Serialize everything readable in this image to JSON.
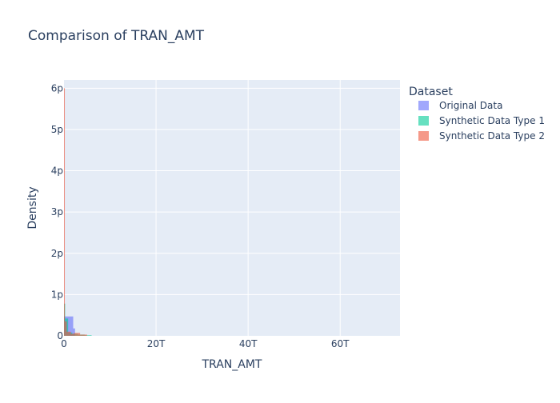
{
  "chart_data": {
    "type": "histogram",
    "title": "Comparison of TRAN_AMT",
    "xlabel": "TRAN_AMT",
    "ylabel": "Density",
    "xlim": [
      0,
      73000000000000.0
    ],
    "ylim": [
      0,
      6.2e-12
    ],
    "x_ticks": [
      {
        "value": 0,
        "label": "0"
      },
      {
        "value": 20000000000000.0,
        "label": "20T"
      },
      {
        "value": 40000000000000.0,
        "label": "40T"
      },
      {
        "value": 60000000000000.0,
        "label": "60T"
      }
    ],
    "y_ticks": [
      {
        "value": 0,
        "label": "0"
      },
      {
        "value": 1e-12,
        "label": "1p"
      },
      {
        "value": 2e-12,
        "label": "2p"
      },
      {
        "value": 3e-12,
        "label": "3p"
      },
      {
        "value": 4e-12,
        "label": "4p"
      },
      {
        "value": 5e-12,
        "label": "5p"
      },
      {
        "value": 6e-12,
        "label": "6p"
      }
    ],
    "legend_title": "Dataset",
    "legend_position": "right",
    "grid": true,
    "series": [
      {
        "name": "Original Data",
        "color": "#636efa",
        "bins": [
          {
            "x0": 0,
            "x1": 2000000000000.0,
            "y": 4.7e-13
          },
          {
            "x0": 2000000000000.0,
            "x1": 2400000000000.0,
            "y": 1.8e-13
          }
        ]
      },
      {
        "name": "Synthetic Data Type 1",
        "color": "#00cc96",
        "bins": [
          {
            "x0": 0,
            "x1": 250000000000.0,
            "y": 7.8e-13
          },
          {
            "x0": 250000000000.0,
            "x1": 900000000000.0,
            "y": 4.2e-13
          },
          {
            "x0": 900000000000.0,
            "x1": 1800000000000.0,
            "y": 8e-14
          },
          {
            "x0": 1800000000000.0,
            "x1": 3000000000000.0,
            "y": 5e-14
          },
          {
            "x0": 3000000000000.0,
            "x1": 4500000000000.0,
            "y": 3e-14
          },
          {
            "x0": 4500000000000.0,
            "x1": 6000000000000.0,
            "y": 1.5e-14
          }
        ]
      },
      {
        "name": "Synthetic Data Type 2",
        "color": "#ef553b",
        "bins": [
          {
            "x0": 0,
            "x1": 180000000000.0,
            "y": 6e-12
          },
          {
            "x0": 180000000000.0,
            "x1": 600000000000.0,
            "y": 3.5e-13
          },
          {
            "x0": 600000000000.0,
            "x1": 1500000000000.0,
            "y": 1e-13
          },
          {
            "x0": 1500000000000.0,
            "x1": 2200000000000.0,
            "y": 5e-14
          },
          {
            "x0": 2200000000000.0,
            "x1": 3500000000000.0,
            "y": 7e-14
          },
          {
            "x0": 3500000000000.0,
            "x1": 5000000000000.0,
            "y": 3e-14
          }
        ]
      }
    ]
  }
}
